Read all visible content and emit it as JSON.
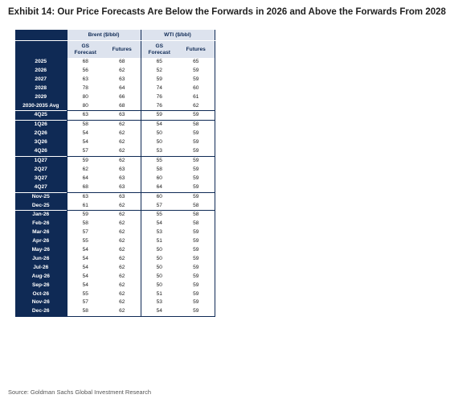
{
  "title": "Exhibit 14: Our Price Forecasts Are Below the Forwards in 2026 and Above the Forwards From 2028",
  "table": {
    "groups": [
      "Brent ($/bbl)",
      "WTI ($/bbl)"
    ],
    "columns": [
      "GS\nForecast",
      "Futures",
      "GS\nForecast",
      "Futures"
    ],
    "rows": [
      {
        "label": "2025",
        "values": [
          "68",
          "68",
          "65",
          "65"
        ]
      },
      {
        "label": "2026",
        "values": [
          "56",
          "62",
          "52",
          "59"
        ]
      },
      {
        "label": "2027",
        "values": [
          "63",
          "63",
          "59",
          "59"
        ]
      },
      {
        "label": "2028",
        "values": [
          "78",
          "64",
          "74",
          "60"
        ]
      },
      {
        "label": "2029",
        "values": [
          "80",
          "66",
          "76",
          "61"
        ]
      },
      {
        "label": "2030-2035 Avg",
        "values": [
          "80",
          "68",
          "76",
          "62"
        ]
      },
      {
        "label": "4Q25",
        "values": [
          "63",
          "63",
          "59",
          "59"
        ]
      },
      {
        "label": "1Q26",
        "values": [
          "58",
          "62",
          "54",
          "58"
        ]
      },
      {
        "label": "2Q26",
        "values": [
          "54",
          "62",
          "50",
          "59"
        ]
      },
      {
        "label": "3Q26",
        "values": [
          "54",
          "62",
          "50",
          "59"
        ]
      },
      {
        "label": "4Q26",
        "values": [
          "57",
          "62",
          "53",
          "59"
        ]
      },
      {
        "label": "1Q27",
        "values": [
          "59",
          "62",
          "55",
          "59"
        ]
      },
      {
        "label": "2Q27",
        "values": [
          "62",
          "63",
          "58",
          "59"
        ]
      },
      {
        "label": "3Q27",
        "values": [
          "64",
          "63",
          "60",
          "59"
        ]
      },
      {
        "label": "4Q27",
        "values": [
          "68",
          "63",
          "64",
          "59"
        ]
      },
      {
        "label": "Nov-25",
        "values": [
          "63",
          "63",
          "60",
          "59"
        ]
      },
      {
        "label": "Dec-25",
        "values": [
          "61",
          "62",
          "57",
          "58"
        ]
      },
      {
        "label": "Jan-26",
        "values": [
          "59",
          "62",
          "55",
          "58"
        ]
      },
      {
        "label": "Feb-26",
        "values": [
          "58",
          "62",
          "54",
          "58"
        ]
      },
      {
        "label": "Mar-26",
        "values": [
          "57",
          "62",
          "53",
          "59"
        ]
      },
      {
        "label": "Apr-26",
        "values": [
          "55",
          "62",
          "51",
          "59"
        ]
      },
      {
        "label": "May-26",
        "values": [
          "54",
          "62",
          "50",
          "59"
        ]
      },
      {
        "label": "Jun-26",
        "values": [
          "54",
          "62",
          "50",
          "59"
        ]
      },
      {
        "label": "Jul-26",
        "values": [
          "54",
          "62",
          "50",
          "59"
        ]
      },
      {
        "label": "Aug-26",
        "values": [
          "54",
          "62",
          "50",
          "59"
        ]
      },
      {
        "label": "Sep-26",
        "values": [
          "54",
          "62",
          "50",
          "59"
        ]
      },
      {
        "label": "Oct-26",
        "values": [
          "55",
          "62",
          "51",
          "59"
        ]
      },
      {
        "label": "Nov-26",
        "values": [
          "57",
          "62",
          "53",
          "59"
        ]
      },
      {
        "label": "Dec-26",
        "values": [
          "58",
          "62",
          "54",
          "59"
        ]
      }
    ],
    "separators_before": [
      "4Q25",
      "1Q26",
      "1Q27",
      "Nov-25",
      "Jan-26"
    ]
  },
  "source": "Source: Goldman Sachs Global Investment Research"
}
